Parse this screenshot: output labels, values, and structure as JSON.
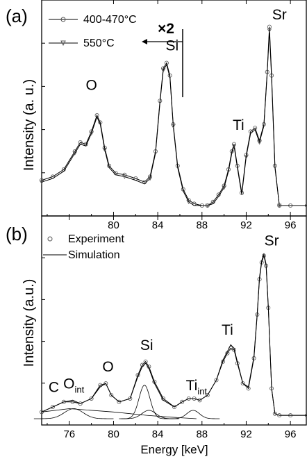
{
  "chart_data": [
    {
      "panel": "(a)",
      "type": "line",
      "xlabel": "",
      "ylabel": "Intensity (a. u.)",
      "xlim": [
        73.5,
        97.5
      ],
      "xticks": [
        80,
        84,
        88,
        92,
        96
      ],
      "legend": {
        "placement": "top-left",
        "entries": [
          "400-470°C",
          "550°C"
        ]
      },
      "annotation": "×2",
      "series": [
        {
          "name": "400-470°C",
          "marker": "circle",
          "x": [
            73.5,
            74.5,
            75.5,
            76.5,
            77.0,
            77.5,
            78.0,
            78.5,
            78.8,
            79.2,
            79.6,
            80.2,
            81.0,
            82.0,
            82.8,
            83.3,
            83.8,
            84.2,
            84.5,
            84.8,
            85.1,
            85.4,
            85.8,
            86.3,
            86.8,
            87.3,
            88.0,
            88.5,
            89.0,
            89.5,
            90.0,
            90.4,
            90.7,
            90.9,
            91.2,
            91.6,
            92.0,
            92.4,
            92.8,
            93.2,
            93.6,
            93.9,
            94.1,
            94.3,
            94.6,
            95.0,
            96.0,
            97.5
          ],
          "y": [
            0.14,
            0.16,
            0.2,
            0.3,
            0.35,
            0.34,
            0.41,
            0.5,
            0.46,
            0.32,
            0.22,
            0.18,
            0.17,
            0.15,
            0.13,
            0.16,
            0.3,
            0.58,
            0.76,
            0.79,
            0.72,
            0.45,
            0.22,
            0.09,
            0.03,
            0.01,
            0.0,
            0.0,
            0.02,
            0.06,
            0.11,
            0.2,
            0.3,
            0.34,
            0.22,
            0.07,
            0.28,
            0.41,
            0.43,
            0.36,
            0.45,
            0.74,
            0.99,
            0.72,
            0.22,
            0.0,
            0.0,
            0.0
          ]
        },
        {
          "name": "550°C",
          "marker": "triangle-down",
          "x": [
            73.5,
            74.5,
            75.5,
            76.5,
            77.0,
            77.5,
            78.0,
            78.5,
            78.8,
            79.2,
            79.6,
            80.2,
            81.0,
            82.0,
            82.8,
            83.3,
            83.8,
            84.2,
            84.5,
            84.8,
            85.1,
            85.4,
            85.8,
            86.3,
            86.8,
            87.3,
            88.0,
            88.5,
            89.0,
            89.5,
            90.0,
            90.4,
            90.7,
            90.9,
            91.2,
            91.6,
            92.0,
            92.4,
            92.8,
            93.2,
            93.6,
            93.9,
            94.1,
            94.3,
            94.6,
            95.0,
            96.0,
            97.5
          ],
          "y": [
            0.13,
            0.15,
            0.19,
            0.29,
            0.34,
            0.33,
            0.4,
            0.49,
            0.45,
            0.31,
            0.21,
            0.17,
            0.16,
            0.14,
            0.12,
            0.15,
            0.29,
            0.57,
            0.75,
            0.78,
            0.71,
            0.44,
            0.21,
            0.08,
            0.02,
            0.0,
            0.0,
            0.0,
            0.01,
            0.05,
            0.1,
            0.19,
            0.29,
            0.33,
            0.21,
            0.06,
            0.27,
            0.4,
            0.42,
            0.35,
            0.44,
            0.73,
            0.97,
            0.7,
            0.21,
            0.0,
            0.0,
            0.0
          ]
        }
      ],
      "peak_labels": [
        {
          "text": "O",
          "x": 78.0,
          "y": 0.64
        },
        {
          "text": "Si",
          "x": 85.3,
          "y": 0.86
        },
        {
          "text": "Ti",
          "x": 91.3,
          "y": 0.42
        },
        {
          "text": "Sr",
          "x": 95.0,
          "y": 1.03
        }
      ]
    },
    {
      "panel": "(b)",
      "type": "line",
      "xlabel": "Energy [keV]",
      "ylabel": "Intensity (a.u.)",
      "xlim": [
        73.5,
        97.5
      ],
      "xticks": [
        76,
        80,
        84,
        88,
        92,
        96
      ],
      "legend": {
        "placement": "top-left",
        "entries": [
          "Experiment",
          "Simulation"
        ]
      },
      "series": [
        {
          "name": "Experiment",
          "marker": "circle",
          "x": [
            73.5,
            74.5,
            75.5,
            76.3,
            77.0,
            78.0,
            78.8,
            79.3,
            79.8,
            80.5,
            81.5,
            82.2,
            82.6,
            82.9,
            83.2,
            83.7,
            84.5,
            85.5,
            86.2,
            86.8,
            87.3,
            87.8,
            88.5,
            89.3,
            89.9,
            90.3,
            90.6,
            90.9,
            91.2,
            91.7,
            92.2,
            92.7,
            93.0,
            93.2,
            93.4,
            93.6,
            93.8,
            94.0,
            94.3,
            94.6,
            95.0,
            96.0,
            97.5
          ],
          "y": [
            0.04,
            0.07,
            0.1,
            0.1,
            0.09,
            0.12,
            0.2,
            0.21,
            0.14,
            0.1,
            0.12,
            0.26,
            0.32,
            0.34,
            0.31,
            0.22,
            0.12,
            0.07,
            0.1,
            0.12,
            0.12,
            0.11,
            0.14,
            0.23,
            0.34,
            0.39,
            0.42,
            0.41,
            0.33,
            0.21,
            0.18,
            0.36,
            0.62,
            0.83,
            0.93,
            0.97,
            0.91,
            0.66,
            0.18,
            0.03,
            0.02,
            0.02,
            0.02
          ]
        },
        {
          "name": "Simulation",
          "marker": "none",
          "x": [
            73.5,
            74.5,
            75.5,
            76.3,
            77.0,
            78.0,
            78.8,
            79.3,
            79.8,
            80.5,
            81.5,
            82.2,
            82.6,
            82.9,
            83.2,
            83.7,
            84.5,
            85.5,
            86.2,
            86.8,
            87.3,
            87.8,
            88.5,
            89.3,
            89.9,
            90.3,
            90.6,
            90.9,
            91.2,
            91.7,
            92.2,
            92.7,
            93.0,
            93.2,
            93.4,
            93.6,
            93.8,
            94.0,
            94.3,
            94.6,
            95.0,
            96.0,
            97.5
          ],
          "y": [
            0.04,
            0.07,
            0.1,
            0.11,
            0.09,
            0.12,
            0.19,
            0.21,
            0.14,
            0.1,
            0.12,
            0.25,
            0.31,
            0.33,
            0.3,
            0.21,
            0.11,
            0.07,
            0.1,
            0.12,
            0.12,
            0.11,
            0.14,
            0.23,
            0.35,
            0.4,
            0.44,
            0.42,
            0.34,
            0.21,
            0.19,
            0.37,
            0.63,
            0.84,
            0.94,
            0.98,
            0.92,
            0.67,
            0.18,
            0.03,
            0.02,
            0.02,
            0.02
          ]
        }
      ],
      "component_peaks": [
        {
          "center": 76.4,
          "height": 0.06,
          "width": 1.2
        },
        {
          "center": 82.8,
          "height": 0.2,
          "width": 0.7
        },
        {
          "center": 83.2,
          "height": 0.05,
          "width": 0.9
        },
        {
          "center": 87.2,
          "height": 0.05,
          "width": 0.8
        }
      ],
      "baseline": {
        "x": [
          73.5,
          76.0,
          80.0,
          83.0,
          85.0,
          87.5
        ],
        "y": [
          0.04,
          0.06,
          0.04,
          0.02,
          0.01,
          0.0
        ]
      },
      "peak_labels": [
        {
          "text": "C",
          "sub": "",
          "x": 74.6,
          "y": 0.16
        },
        {
          "text": "O",
          "sub": "int",
          "x": 76.4,
          "y": 0.18
        },
        {
          "text": "O",
          "sub": "",
          "x": 79.5,
          "y": 0.28
        },
        {
          "text": "Si",
          "sub": "",
          "x": 83.0,
          "y": 0.41
        },
        {
          "text": "Ti",
          "sub": "int",
          "x": 87.5,
          "y": 0.17
        },
        {
          "text": "Ti",
          "sub": "",
          "x": 90.3,
          "y": 0.5
        },
        {
          "text": "Sr",
          "sub": "",
          "x": 94.3,
          "y": 1.03
        }
      ]
    }
  ]
}
